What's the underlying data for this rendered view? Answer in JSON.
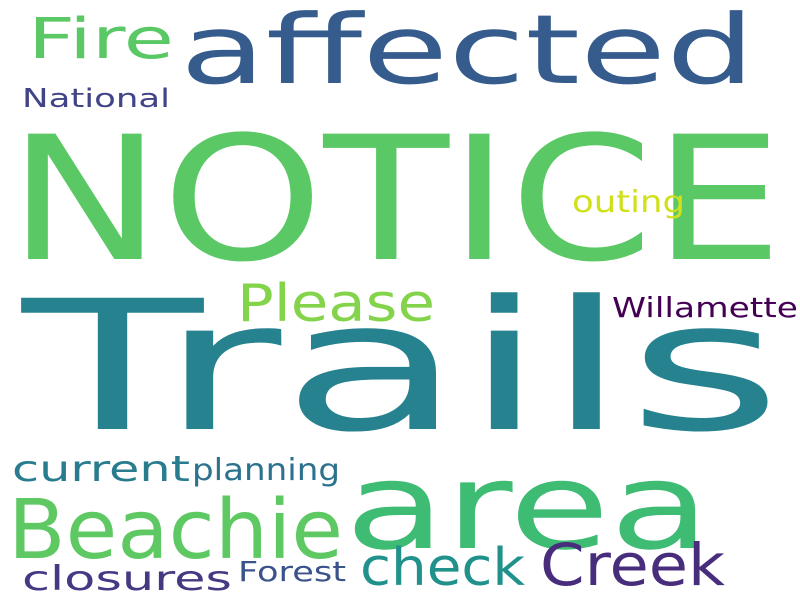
{
  "words": [
    {
      "id": "notice",
      "text": "NOTICE",
      "color": "#5ac864"
    },
    {
      "id": "trails",
      "text": "Trails",
      "color": "#26828e"
    },
    {
      "id": "affected",
      "text": "affected",
      "color": "#365c8d"
    },
    {
      "id": "area",
      "text": "area",
      "color": "#3fbc73"
    },
    {
      "id": "beachie",
      "text": "Beachie",
      "color": "#5ec962"
    },
    {
      "id": "creek",
      "text": "Creek",
      "color": "#472d7b"
    },
    {
      "id": "please",
      "text": "Please",
      "color": "#84d44b"
    },
    {
      "id": "fire",
      "text": "Fire",
      "color": "#5ac864"
    },
    {
      "id": "check",
      "text": "check",
      "color": "#21918c"
    },
    {
      "id": "current",
      "text": "current",
      "color": "#287c8e"
    },
    {
      "id": "closures",
      "text": "closures",
      "color": "#443983"
    },
    {
      "id": "planning",
      "text": "planning",
      "color": "#2c728e"
    },
    {
      "id": "forest",
      "text": "Forest",
      "color": "#3b528b"
    },
    {
      "id": "national",
      "text": "National",
      "color": "#414487"
    },
    {
      "id": "willamette",
      "text": "Willamette",
      "color": "#440154"
    },
    {
      "id": "outing",
      "text": "outing",
      "color": "#d0e11c"
    }
  ]
}
